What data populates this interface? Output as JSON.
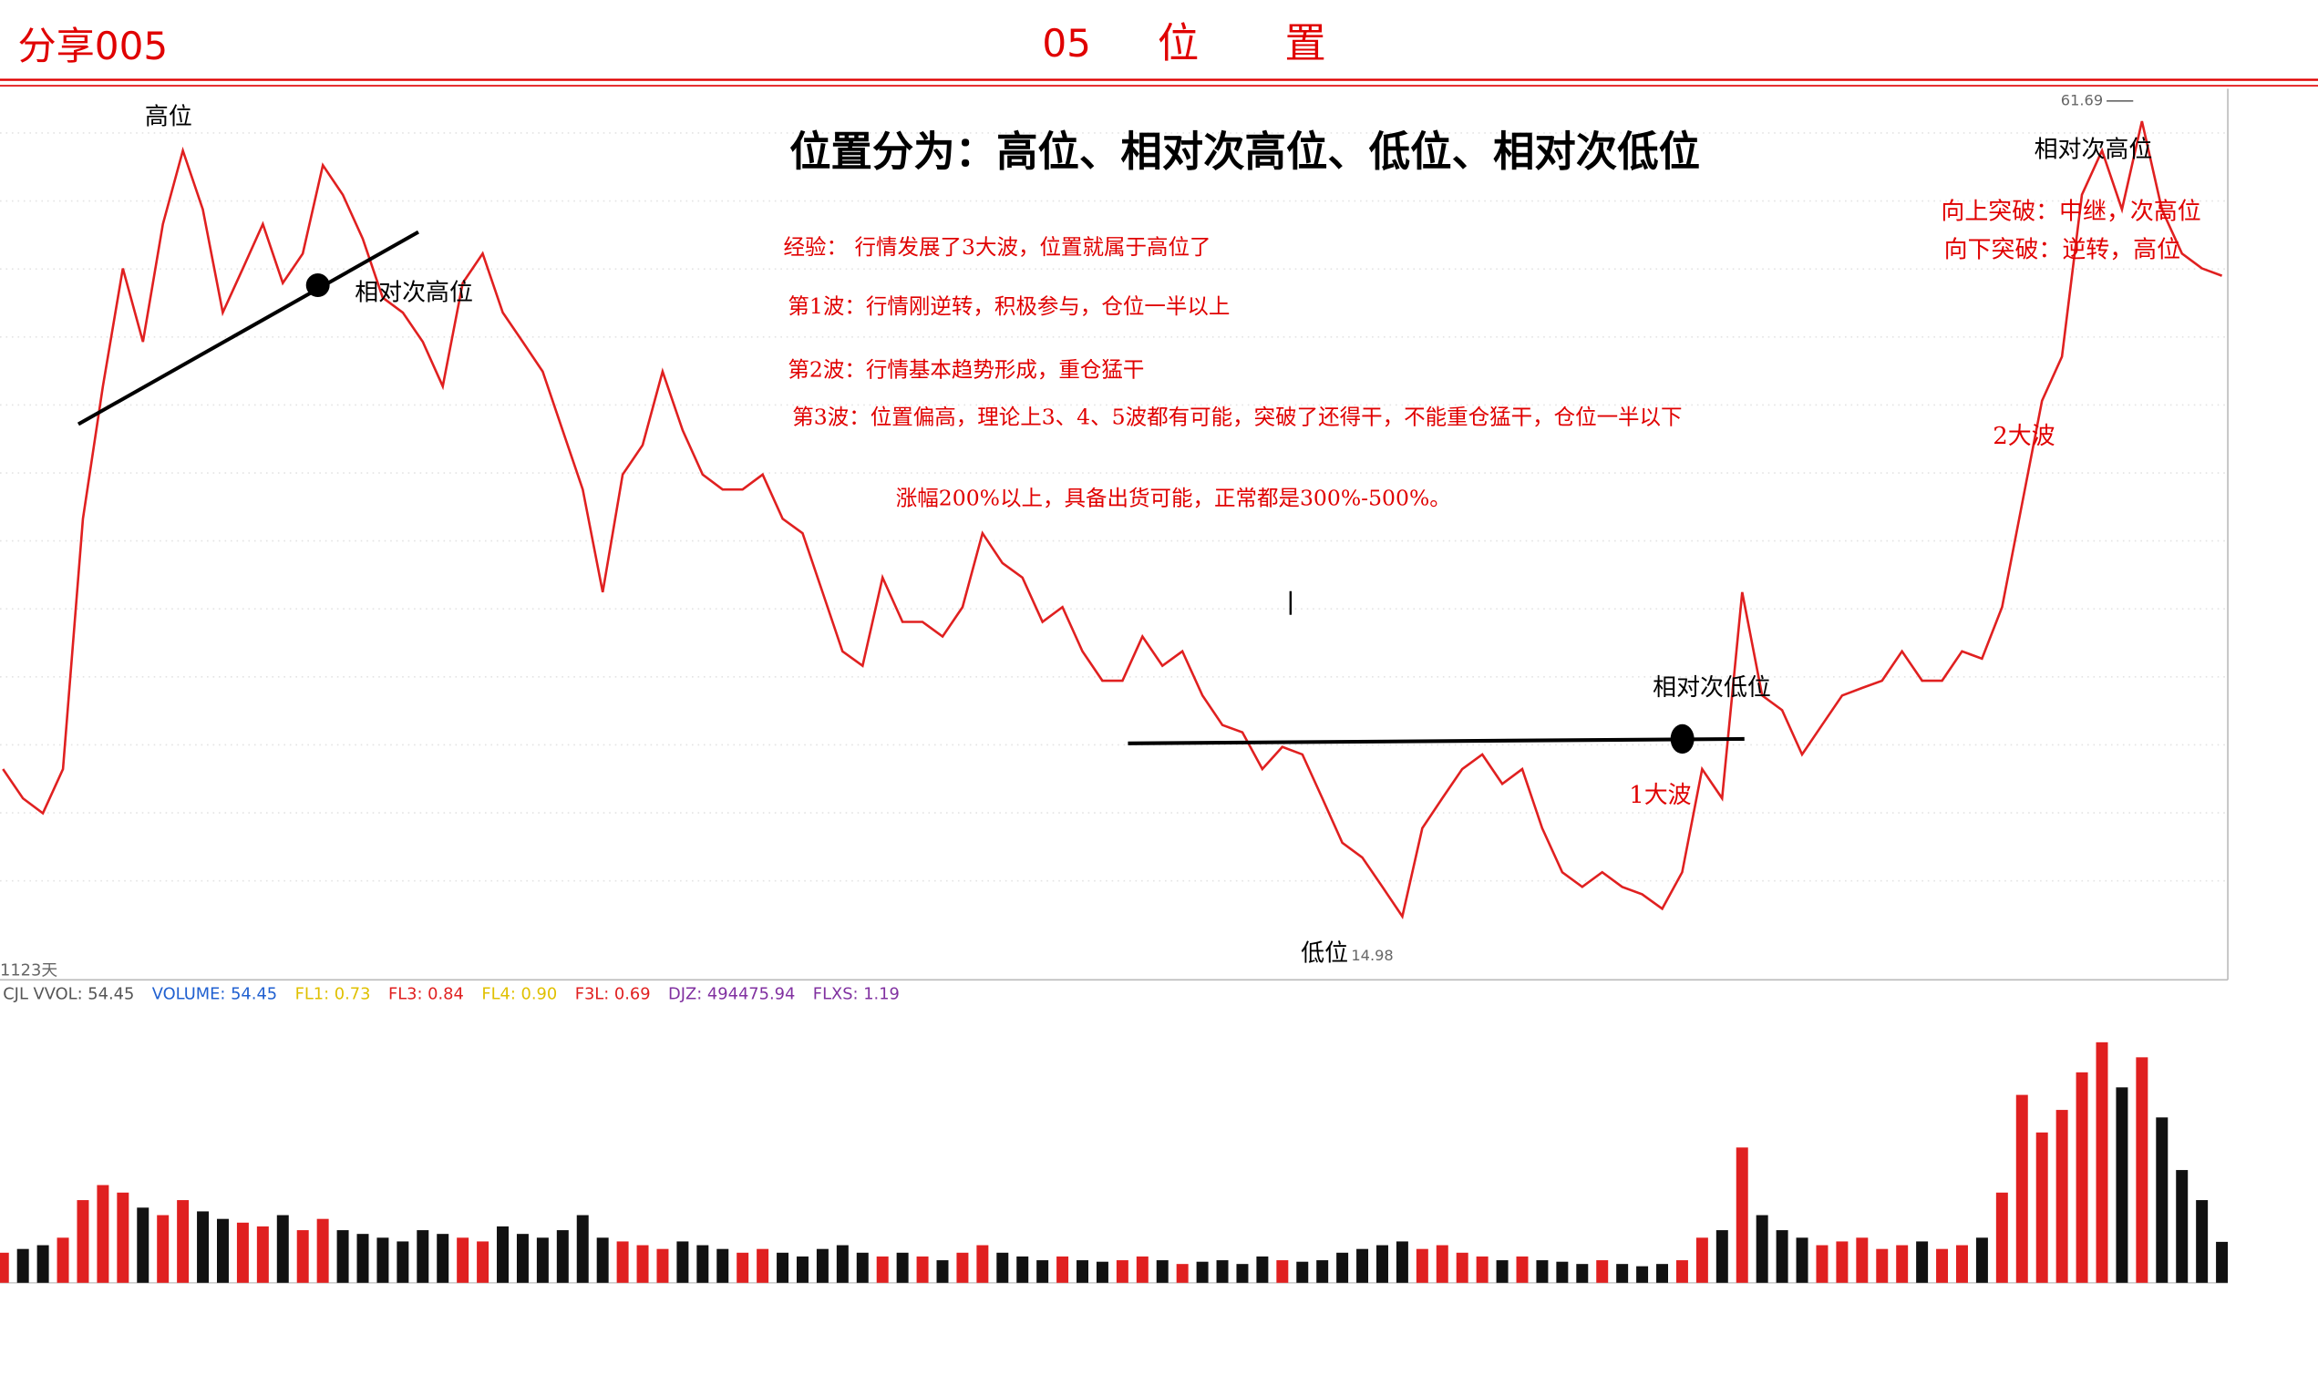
{
  "header": {
    "code": "分享005",
    "number": "05",
    "title": "位置"
  },
  "chart_data": {
    "type": "line",
    "title": "位置分为：高位、相对次高位、低位、相对次低位",
    "notes": [
      "经验： 行情发展了3大波，位置就属于高位了",
      "第1波：行情刚逆转，积极参与，仓位一半以上",
      "第2波：行情基本趋势形成，重仓猛干",
      "第3波：位置偏高，理论上3、4、5波都有可能，突破了还得干，不能重仓猛干，仓位一半以下",
      "涨幅200%以上，具备出货可能，正常都是300%-500%。"
    ],
    "annotations": [
      "高位",
      "相对次高位",
      "低位",
      "相对次低位",
      "1大波",
      "2大波",
      "相对次高位",
      "向上突破：中继，次高位",
      "向下突破：逆转，高位"
    ],
    "period_label": "1123天",
    "high_label": 61.69,
    "low_label": 14.98,
    "log_scale": true,
    "ylim": [
      14.5,
      63
    ],
    "color": "#e02020",
    "values": [
      19.63,
      18.67,
      18.2,
      19.63,
      30.15,
      37.83,
      46.3,
      40.82,
      49.95,
      56.66,
      51.23,
      42.92,
      46.3,
      49.95,
      45.15,
      47.49,
      55.26,
      52.53,
      48.71,
      44.04,
      42.92,
      40.82,
      37.83,
      45.15,
      47.49,
      42.92,
      40.82,
      38.8,
      35.08,
      31.7,
      26.58,
      32.52,
      34.2,
      38.8,
      35.08,
      32.52,
      31.7,
      31.7,
      32.52,
      30.15,
      29.41,
      26.58,
      24.02,
      23.43,
      27.26,
      25.26,
      25.26,
      24.64,
      25.91,
      29.41,
      27.94,
      27.26,
      25.26,
      25.91,
      24.02,
      22.84,
      22.84,
      24.64,
      23.43,
      24.02,
      22.27,
      21.17,
      20.91,
      19.63,
      20.39,
      20.13,
      18.67,
      17.3,
      16.87,
      16.04,
      15.25,
      17.74,
      18.67,
      19.63,
      20.13,
      19.14,
      19.63,
      17.74,
      16.45,
      16.04,
      16.45,
      16.04,
      15.84,
      15.45,
      16.45,
      19.63,
      18.67,
      26.58,
      22.27,
      21.72,
      20.13,
      21.17,
      22.27,
      22.56,
      22.84,
      24.02,
      22.84,
      22.84,
      24.02,
      23.72,
      25.91,
      30.92,
      36.9,
      39.8,
      52.53,
      56.66,
      51.23,
      59.58,
      51.23,
      47.49,
      46.3,
      45.72
    ],
    "volume": {
      "ylim": [
        0,
        350
      ],
      "up_color": "#e02020",
      "down_color": "#111111",
      "values": [
        40,
        45,
        50,
        60,
        110,
        130,
        120,
        100,
        90,
        110,
        95,
        85,
        80,
        75,
        90,
        70,
        85,
        70,
        65,
        60,
        55,
        70,
        65,
        60,
        55,
        75,
        65,
        60,
        70,
        90,
        60,
        55,
        50,
        45,
        55,
        50,
        45,
        40,
        45,
        40,
        35,
        45,
        50,
        40,
        35,
        40,
        35,
        30,
        40,
        50,
        40,
        35,
        30,
        35,
        30,
        28,
        30,
        35,
        30,
        25,
        28,
        30,
        25,
        35,
        30,
        28,
        30,
        40,
        45,
        50,
        55,
        45,
        50,
        40,
        35,
        30,
        35,
        30,
        28,
        25,
        30,
        25,
        22,
        25,
        30,
        60,
        70,
        180,
        90,
        70,
        60,
        50,
        55,
        60,
        45,
        50,
        55,
        45,
        50,
        60,
        120,
        250,
        200,
        230,
        280,
        320,
        260,
        300,
        220,
        150,
        110,
        54.45
      ]
    },
    "indicators": [
      {
        "text": "CJL VVOL: 54.45",
        "color": "#555555"
      },
      {
        "text": "VOLUME: 54.45",
        "color": "#2060d0"
      },
      {
        "text": "FL1: 0.73",
        "color": "#e0c000"
      },
      {
        "text": "FL3: 0.84",
        "color": "#e02020"
      },
      {
        "text": "FL4: 0.90",
        "color": "#e0c000"
      },
      {
        "text": "F3L: 0.69",
        "color": "#e02020"
      },
      {
        "text": "DJZ: 494475.94",
        "color": "#8030a0"
      },
      {
        "text": "FLXS: 1.19",
        "color": "#8030a0"
      }
    ]
  }
}
